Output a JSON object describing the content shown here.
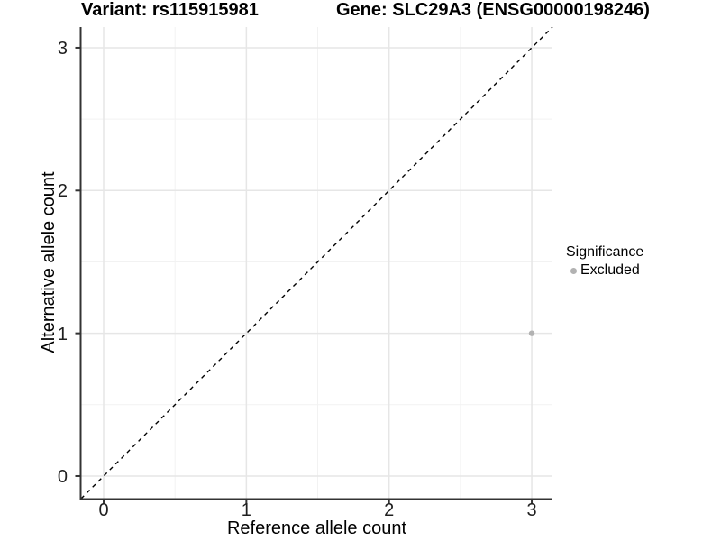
{
  "titles": {
    "variant": "Variant: rs115915981",
    "gene": "Gene: SLC29A3 (ENSG00000198246)"
  },
  "chart_data": {
    "type": "scatter",
    "title": "Variant: rs115915981   Gene: SLC29A3 (ENSG00000198246)",
    "xlabel": "Reference allele count",
    "ylabel": "Alternative allele count",
    "xlim": [
      -0.158,
      3.145
    ],
    "ylim": [
      -0.158,
      3.145
    ],
    "x_ticks": [
      0,
      1,
      2,
      3
    ],
    "y_ticks": [
      0,
      1,
      2,
      3
    ],
    "x_minor_ticks": [
      0.5,
      1.5,
      2.5
    ],
    "y_minor_ticks": [
      0.5,
      1.5,
      2.5
    ],
    "grid": true,
    "identity_line": {
      "equation": "y = x",
      "style": "dashed",
      "color": "#000000"
    },
    "series": [
      {
        "name": "Excluded",
        "color": "#b2b2b2",
        "points": [
          {
            "x": 3,
            "y": 1
          }
        ]
      }
    ],
    "legend": {
      "title": "Significance",
      "position": "right",
      "entries": [
        {
          "label": "Excluded",
          "color": "#b2b2b2"
        }
      ]
    }
  },
  "colors": {
    "background": "#ffffff",
    "axis_line": "#333333",
    "tick_mark": "#333333",
    "grid_major": "#e6e6e6",
    "grid_minor": "#f2f2f2",
    "point": "#b2b2b2",
    "dashed_line": "#000000",
    "text": "#000000"
  }
}
